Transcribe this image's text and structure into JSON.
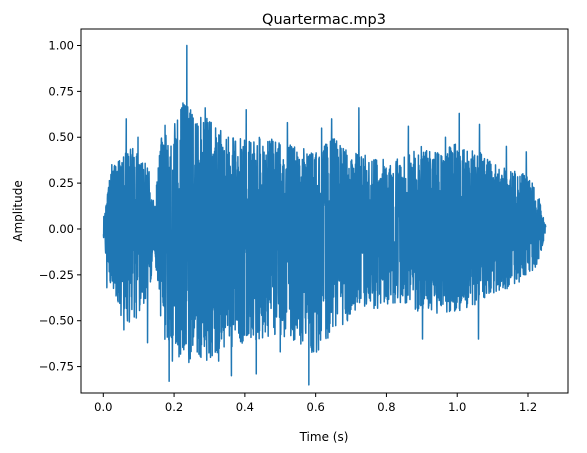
{
  "chart_data": {
    "type": "line",
    "title": "Quartermac.mp3",
    "xlabel": "Time (s)",
    "ylabel": "Amplitude",
    "xlim": [
      -0.063,
      1.313
    ],
    "ylim": [
      -0.894,
      1.09
    ],
    "xticks": [
      0.0,
      0.2,
      0.4,
      0.6,
      0.8,
      1.0,
      1.2
    ],
    "xtick_labels": [
      "0.0",
      "0.2",
      "0.4",
      "0.6",
      "0.8",
      "1.0",
      "1.2"
    ],
    "yticks": [
      -0.75,
      -0.5,
      -0.25,
      0.0,
      0.25,
      0.5,
      0.75,
      1.0
    ],
    "ytick_labels": [
      "−0.75",
      "−0.50",
      "−0.25",
      "0.00",
      "0.25",
      "0.50",
      "0.75",
      "1.00"
    ],
    "grid": false,
    "series": [
      {
        "color": "#1f77b4",
        "duration": 1.25,
        "envelope": {
          "t": [
            0.0,
            0.02,
            0.05,
            0.08,
            0.11,
            0.13,
            0.145,
            0.16,
            0.175,
            0.2,
            0.23,
            0.26,
            0.3,
            0.35,
            0.4,
            0.45,
            0.5,
            0.55,
            0.6,
            0.65,
            0.7,
            0.75,
            0.8,
            0.85,
            0.9,
            0.95,
            1.0,
            1.05,
            1.1,
            1.15,
            1.2,
            1.23,
            1.25
          ],
          "pos": [
            0.05,
            0.3,
            0.42,
            0.45,
            0.4,
            0.32,
            0.12,
            0.45,
            0.62,
            0.57,
            0.72,
            0.62,
            0.6,
            0.5,
            0.5,
            0.5,
            0.48,
            0.45,
            0.42,
            0.5,
            0.42,
            0.4,
            0.38,
            0.4,
            0.45,
            0.42,
            0.48,
            0.44,
            0.36,
            0.32,
            0.3,
            0.18,
            0.02
          ],
          "neg": [
            0.05,
            0.3,
            0.48,
            0.52,
            0.45,
            0.35,
            0.12,
            0.5,
            0.62,
            0.65,
            0.75,
            0.7,
            0.72,
            0.65,
            0.62,
            0.6,
            0.58,
            0.62,
            0.7,
            0.55,
            0.5,
            0.45,
            0.42,
            0.4,
            0.48,
            0.46,
            0.45,
            0.42,
            0.35,
            0.32,
            0.28,
            0.18,
            0.02
          ]
        },
        "peaks": [
          {
            "t": 0.236,
            "y": 1.0
          },
          {
            "t": 0.581,
            "y": -0.85
          },
          {
            "t": 0.186,
            "y": -0.83
          },
          {
            "t": 0.362,
            "y": -0.8
          },
          {
            "t": 0.432,
            "y": -0.79
          },
          {
            "t": 0.232,
            "y": 0.67
          },
          {
            "t": 0.288,
            "y": 0.66
          },
          {
            "t": 0.404,
            "y": 0.65
          },
          {
            "t": 0.722,
            "y": 0.66
          },
          {
            "t": 1.006,
            "y": 0.63
          },
          {
            "t": 0.065,
            "y": 0.6
          },
          {
            "t": 0.098,
            "y": 0.5
          },
          {
            "t": 0.058,
            "y": -0.55
          },
          {
            "t": 0.125,
            "y": -0.62
          },
          {
            "t": 0.195,
            "y": -0.72
          },
          {
            "t": 0.276,
            "y": -0.7
          },
          {
            "t": 0.326,
            "y": -0.72
          },
          {
            "t": 0.5,
            "y": -0.67
          },
          {
            "t": 0.52,
            "y": 0.58
          },
          {
            "t": 0.617,
            "y": 0.55
          },
          {
            "t": 0.645,
            "y": 0.6
          },
          {
            "t": 0.862,
            "y": 0.56
          },
          {
            "t": 0.902,
            "y": -0.6
          },
          {
            "t": 0.967,
            "y": 0.5
          },
          {
            "t": 1.063,
            "y": 0.57
          },
          {
            "t": 1.06,
            "y": -0.6
          },
          {
            "t": 1.139,
            "y": 0.45
          },
          {
            "t": 1.195,
            "y": 0.42
          },
          {
            "t": 0.01,
            "y": -0.32
          },
          {
            "t": 0.024,
            "y": 0.35
          }
        ]
      }
    ]
  }
}
